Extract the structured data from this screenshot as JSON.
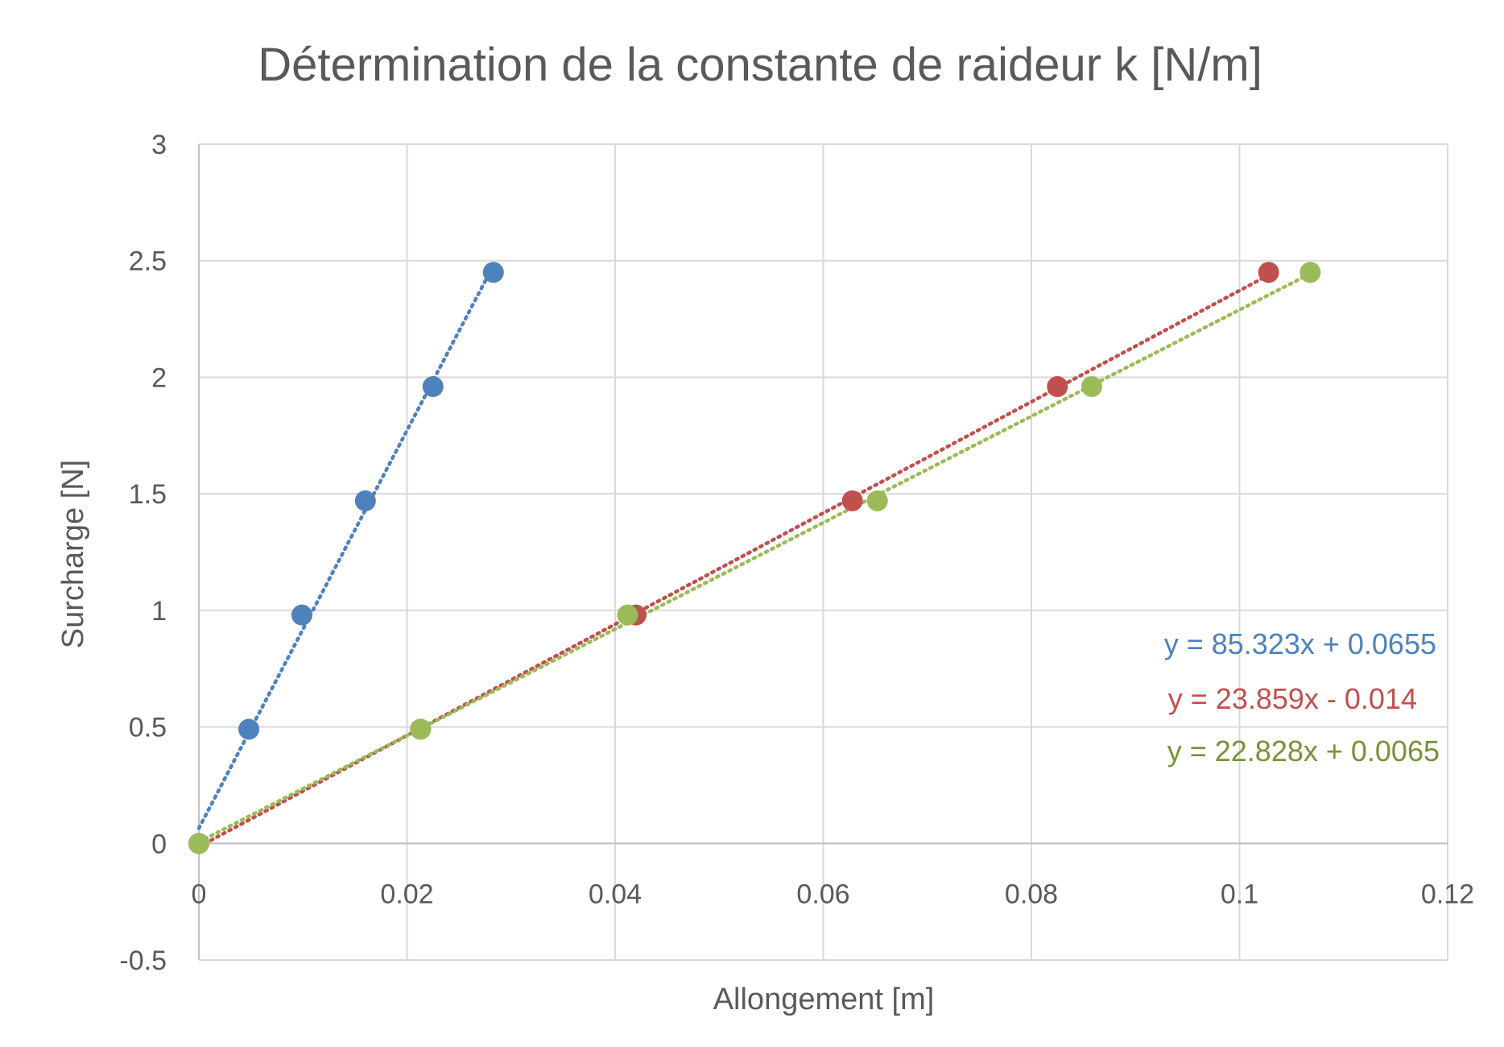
{
  "chart_data": {
    "type": "scatter",
    "title": "Détermination de la constante de raideur k [N/m]",
    "xlabel": "Allongement [m]",
    "ylabel": "Surcharge [N]",
    "xlim": [
      0,
      0.12
    ],
    "ylim": [
      -0.5,
      3
    ],
    "x_ticks": [
      "0",
      "0.02",
      "0.04",
      "0.06",
      "0.08",
      "0.1",
      "0.12"
    ],
    "y_ticks": [
      "-0.5",
      "0",
      "0.5",
      "1",
      "1.5",
      "2",
      "2.5",
      "3"
    ],
    "x_tick_values": [
      0,
      0.02,
      0.04,
      0.06,
      0.08,
      0.1,
      0.12
    ],
    "y_tick_values": [
      -0.5,
      0,
      0.5,
      1,
      1.5,
      2,
      2.5,
      3
    ],
    "grid": true,
    "series": [
      {
        "color": "#4f81bd",
        "x": [
          0,
          0.0048,
          0.0099,
          0.016,
          0.0225,
          0.0283
        ],
        "y": [
          0,
          0.49,
          0.98,
          1.47,
          1.96,
          2.45
        ],
        "trendline": {
          "type": "linear",
          "slope": 85.323,
          "intercept": 0.0655,
          "equation": "y = 85.323x + 0.0655",
          "x_range": [
            0,
            0.0283
          ]
        }
      },
      {
        "color": "#c0504d",
        "x": [
          0,
          0.0213,
          0.042,
          0.0628,
          0.0825,
          0.1028
        ],
        "y": [
          0,
          0.49,
          0.98,
          1.47,
          1.96,
          2.45
        ],
        "trendline": {
          "type": "linear",
          "slope": 23.859,
          "intercept": -0.014,
          "equation": "y = 23.859x - 0.014",
          "x_range": [
            0,
            0.1028
          ]
        }
      },
      {
        "color": "#9bbb59",
        "x": [
          0,
          0.0213,
          0.0412,
          0.0652,
          0.0858,
          0.1068
        ],
        "y": [
          0,
          0.49,
          0.98,
          1.47,
          1.96,
          2.45
        ],
        "trendline": {
          "type": "linear",
          "slope": 22.828,
          "intercept": 0.0065,
          "equation": "y = 22.828x + 0.0065",
          "x_range": [
            0,
            0.1068
          ]
        }
      }
    ]
  }
}
